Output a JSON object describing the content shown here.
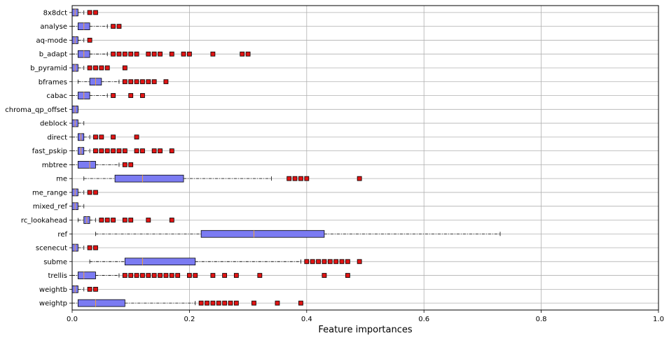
{
  "chart_data": {
    "type": "boxplot",
    "orientation": "horizontal",
    "xlabel": "Feature importances",
    "xlim": [
      0,
      1.0
    ],
    "xticks": [
      0,
      0.2,
      0.4,
      0.6,
      0.8,
      1.0
    ],
    "xtick_labels": [
      "0.0",
      "0.2",
      "0.4",
      "0.6",
      "0.8",
      "1.0"
    ],
    "grid": true,
    "colors": {
      "box_fill": "#7b7bf2",
      "median": "#f2a33a",
      "outlier": "#e01414",
      "grid": "#b0b0b0"
    },
    "categories": [
      "8x8dct",
      "analyse",
      "aq-mode",
      "b_adapt",
      "b_pyramid",
      "bframes",
      "cabac",
      "chroma_qp_offset",
      "deblock",
      "direct",
      "fast_pskip",
      "mbtree",
      "me",
      "me_range",
      "mixed_ref",
      "rc_lookahead",
      "ref",
      "scenecut",
      "subme",
      "trellis",
      "weightb",
      "weightp"
    ],
    "boxes": [
      {
        "whislo": 0,
        "q1": 0,
        "med": 0.005,
        "q3": 0.01,
        "whishi": 0.02,
        "fliers": [
          0.03,
          0.04
        ]
      },
      {
        "whislo": 0,
        "q1": 0.01,
        "med": 0.02,
        "q3": 0.03,
        "whishi": 0.06,
        "fliers": [
          0.07,
          0.08
        ]
      },
      {
        "whislo": 0,
        "q1": 0,
        "med": 0.005,
        "q3": 0.01,
        "whishi": 0.02,
        "fliers": [
          0.03
        ]
      },
      {
        "whislo": 0,
        "q1": 0.01,
        "med": 0.02,
        "q3": 0.03,
        "whishi": 0.06,
        "fliers": [
          0.07,
          0.08,
          0.09,
          0.1,
          0.11,
          0.13,
          0.14,
          0.15,
          0.17,
          0.19,
          0.2,
          0.24,
          0.29,
          0.3
        ]
      },
      {
        "whislo": 0,
        "q1": 0,
        "med": 0.005,
        "q3": 0.01,
        "whishi": 0.02,
        "fliers": [
          0.03,
          0.04,
          0.05,
          0.06,
          0.09
        ]
      },
      {
        "whislo": 0.01,
        "q1": 0.03,
        "med": 0.04,
        "q3": 0.05,
        "whishi": 0.08,
        "fliers": [
          0.09,
          0.1,
          0.11,
          0.12,
          0.13,
          0.14,
          0.16
        ]
      },
      {
        "whislo": 0,
        "q1": 0.01,
        "med": 0.02,
        "q3": 0.03,
        "whishi": 0.06,
        "fliers": [
          0.07,
          0.1,
          0.12
        ]
      },
      {
        "whislo": 0,
        "q1": 0,
        "med": 0.005,
        "q3": 0.01,
        "whishi": 0.01,
        "fliers": []
      },
      {
        "whislo": 0,
        "q1": 0,
        "med": 0.005,
        "q3": 0.01,
        "whishi": 0.02,
        "fliers": []
      },
      {
        "whislo": 0,
        "q1": 0.01,
        "med": 0.015,
        "q3": 0.02,
        "whishi": 0.03,
        "fliers": [
          0.04,
          0.05,
          0.07,
          0.11
        ]
      },
      {
        "whislo": 0,
        "q1": 0.01,
        "med": 0.015,
        "q3": 0.02,
        "whishi": 0.03,
        "fliers": [
          0.04,
          0.05,
          0.06,
          0.07,
          0.08,
          0.09,
          0.11,
          0.12,
          0.14,
          0.15,
          0.17
        ]
      },
      {
        "whislo": 0,
        "q1": 0.01,
        "med": 0.03,
        "q3": 0.04,
        "whishi": 0.08,
        "fliers": [
          0.09,
          0.1
        ]
      },
      {
        "whislo": 0.02,
        "q1": 0.073,
        "med": 0.12,
        "q3": 0.19,
        "whishi": 0.34,
        "fliers": [
          0.37,
          0.38,
          0.39,
          0.4,
          0.49
        ]
      },
      {
        "whislo": 0,
        "q1": 0,
        "med": 0.005,
        "q3": 0.01,
        "whishi": 0.02,
        "fliers": [
          0.03,
          0.04
        ]
      },
      {
        "whislo": 0,
        "q1": 0,
        "med": 0.005,
        "q3": 0.01,
        "whishi": 0.02,
        "fliers": []
      },
      {
        "whislo": 0.01,
        "q1": 0.02,
        "med": 0.025,
        "q3": 0.03,
        "whishi": 0.04,
        "fliers": [
          0.05,
          0.06,
          0.07,
          0.09,
          0.1,
          0.13,
          0.17
        ]
      },
      {
        "whislo": 0.04,
        "q1": 0.22,
        "med": 0.31,
        "q3": 0.43,
        "whishi": 0.73,
        "fliers": []
      },
      {
        "whislo": 0,
        "q1": 0,
        "med": 0.005,
        "q3": 0.01,
        "whishi": 0.02,
        "fliers": [
          0.03,
          0.04
        ]
      },
      {
        "whislo": 0.03,
        "q1": 0.09,
        "med": 0.12,
        "q3": 0.21,
        "whishi": 0.39,
        "fliers": [
          0.4,
          0.41,
          0.42,
          0.43,
          0.44,
          0.45,
          0.46,
          0.47,
          0.49
        ]
      },
      {
        "whislo": 0,
        "q1": 0.01,
        "med": 0.02,
        "q3": 0.04,
        "whishi": 0.08,
        "fliers": [
          0.09,
          0.1,
          0.11,
          0.12,
          0.13,
          0.14,
          0.15,
          0.16,
          0.17,
          0.18,
          0.2,
          0.21,
          0.24,
          0.26,
          0.28,
          0.32,
          0.43,
          0.47
        ]
      },
      {
        "whislo": 0,
        "q1": 0,
        "med": 0.005,
        "q3": 0.01,
        "whishi": 0.02,
        "fliers": [
          0.03,
          0.04
        ]
      },
      {
        "whislo": 0,
        "q1": 0.01,
        "med": 0.04,
        "q3": 0.09,
        "whishi": 0.21,
        "fliers": [
          0.22,
          0.23,
          0.24,
          0.25,
          0.26,
          0.27,
          0.28,
          0.31,
          0.35,
          0.39
        ]
      }
    ]
  }
}
